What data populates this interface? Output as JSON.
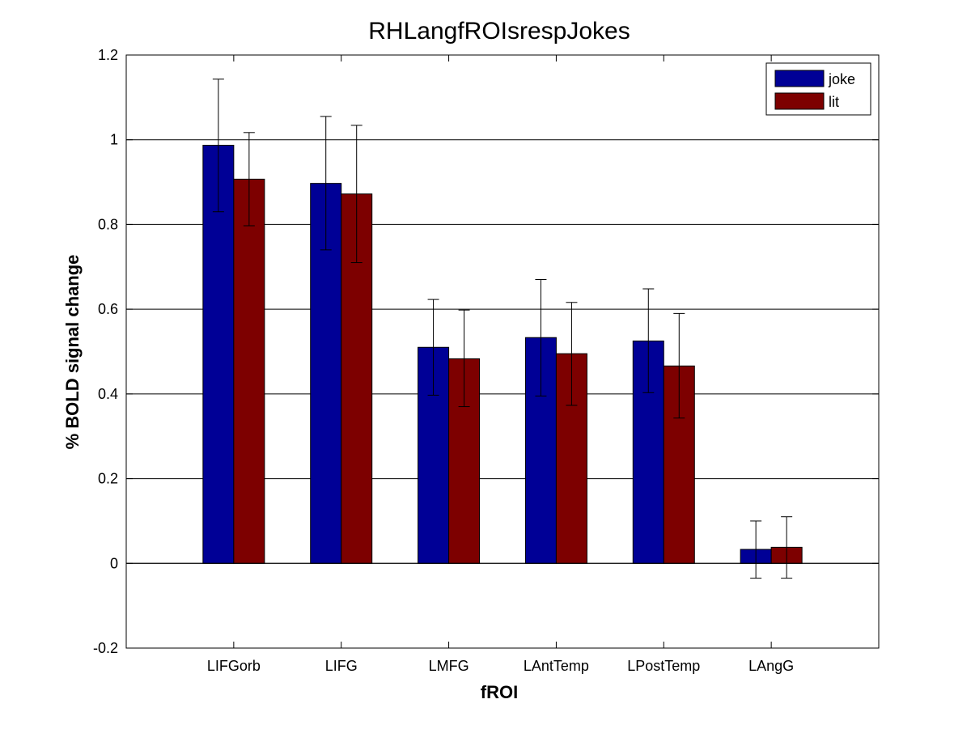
{
  "chart_data": {
    "type": "bar",
    "title": "RHLangfROIsrespJokes",
    "xlabel": "fROI",
    "ylabel": "% BOLD signal change",
    "categories": [
      "LIFGorb",
      "LIFG",
      "LMFG",
      "LAntTemp",
      "LPostTemp",
      "LAngG"
    ],
    "series": [
      {
        "name": "joke",
        "color": "#000096",
        "values": [
          0.987,
          0.897,
          0.51,
          0.533,
          0.525,
          0.033
        ],
        "error_low": [
          0.83,
          0.74,
          0.397,
          0.395,
          0.403,
          -0.035
        ],
        "error_high": [
          1.143,
          1.055,
          0.623,
          0.67,
          0.648,
          0.1
        ]
      },
      {
        "name": "lit",
        "color": "#7d0000",
        "values": [
          0.907,
          0.872,
          0.483,
          0.495,
          0.466,
          0.038
        ],
        "error_low": [
          0.797,
          0.71,
          0.37,
          0.373,
          0.343,
          -0.035
        ],
        "error_high": [
          1.017,
          1.034,
          0.598,
          0.616,
          0.59,
          0.11
        ]
      }
    ],
    "ylim": [
      -0.2,
      1.2
    ],
    "yticks": [
      "-0.2",
      "0",
      "0.2",
      "0.4",
      "0.6",
      "0.8",
      "1",
      "1.2"
    ],
    "ytick_values": [
      -0.2,
      0,
      0.2,
      0.4,
      0.6,
      0.8,
      1.0,
      1.2
    ],
    "grid": "horizontal",
    "legend_position": "top-right"
  }
}
